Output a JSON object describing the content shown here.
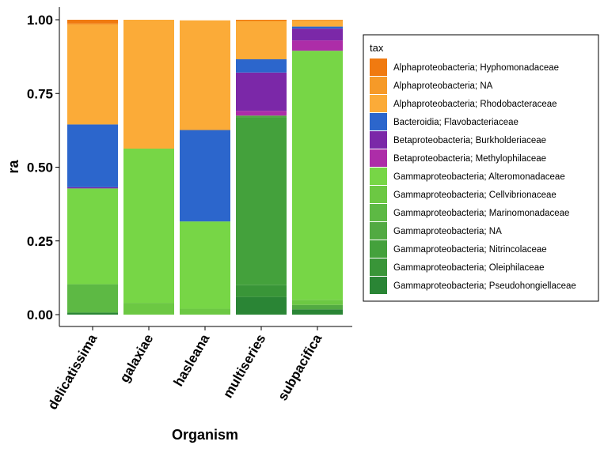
{
  "chart_data": {
    "type": "bar",
    "stacked": true,
    "xlabel": "Organism",
    "ylabel": "ra",
    "ylim": [
      0,
      1
    ],
    "yticks": [
      "0.00",
      "0.25",
      "0.50",
      "0.75",
      "1.00"
    ],
    "categories": [
      "delicatissima",
      "galaxiae",
      "hasleana",
      "multiseries",
      "subpacifica"
    ],
    "legend": {
      "title": "tax",
      "position": "right"
    },
    "series": [
      {
        "name": "Alphaproteobacteria; Hyphomonadaceae",
        "color": "#f07a10",
        "values": [
          0.013,
          0,
          0,
          0.004,
          0
        ]
      },
      {
        "name": "Alphaproteobacteria; NA",
        "color": "#f69a28",
        "values": [
          0.005,
          0,
          0,
          0,
          0.005
        ]
      },
      {
        "name": "Alphaproteobacteria; Rhodobacteraceae",
        "color": "#fbab38",
        "values": [
          0.337,
          0.437,
          0.372,
          0.13,
          0.018
        ]
      },
      {
        "name": "Bacteroidia; Flavobacteriaceae",
        "color": "#2c66cc",
        "values": [
          0.213,
          0,
          0.31,
          0.045,
          0.007
        ]
      },
      {
        "name": "Betaproteobacteria; Burkholderiaceae",
        "color": "#7b28a8",
        "values": [
          0.004,
          0,
          0,
          0.13,
          0.04
        ]
      },
      {
        "name": "Betaproteobacteria; Methylophilaceae",
        "color": "#ad2da8",
        "values": [
          0,
          0,
          0,
          0.016,
          0.035
        ]
      },
      {
        "name": "Gammaproteobacteria; Alteromonadaceae",
        "color": "#77d646",
        "values": [
          0.325,
          0.523,
          0.296,
          0,
          0.845
        ]
      },
      {
        "name": "Gammaproteobacteria; Cellvibrionaceae",
        "color": "#6cc843",
        "values": [
          0,
          0.04,
          0.02,
          0,
          0.017
        ]
      },
      {
        "name": "Gammaproteobacteria; Marinomonadaceae",
        "color": "#5db944",
        "values": [
          0.096,
          0,
          0,
          0,
          0
        ]
      },
      {
        "name": "Gammaproteobacteria; NA",
        "color": "#52aa42",
        "values": [
          0,
          0,
          0,
          0.005,
          0.015
        ]
      },
      {
        "name": "Gammaproteobacteria; Nitrincolaceae",
        "color": "#44a13c",
        "values": [
          0,
          0,
          0,
          0.57,
          0
        ]
      },
      {
        "name": "Gammaproteobacteria; Oleiphilaceae",
        "color": "#399538",
        "values": [
          0,
          0,
          0,
          0.04,
          0
        ]
      },
      {
        "name": "Gammaproteobacteria; Pseudohongiellaceae",
        "color": "#2a8535",
        "values": [
          0.007,
          0,
          0,
          0.06,
          0.018
        ]
      }
    ]
  }
}
